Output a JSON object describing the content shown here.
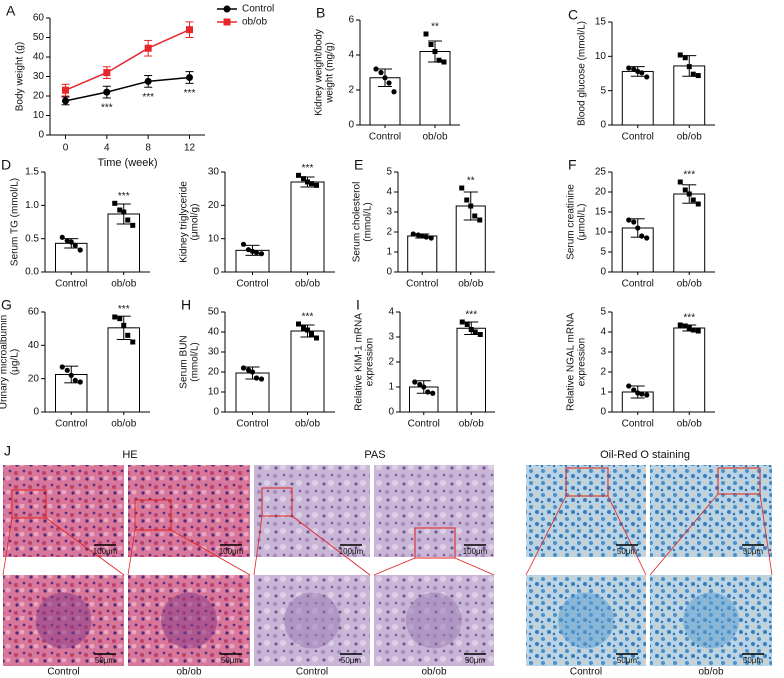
{
  "chart_data": [
    {
      "type": "line",
      "label": "A",
      "xlabel": "Time (week)",
      "ylabel": [
        "Body weight (g)"
      ],
      "x": [
        0,
        4,
        8,
        12
      ],
      "xlim": [
        -1.5,
        13.5
      ],
      "xticks": [
        0,
        4,
        8,
        12
      ],
      "ylim": [
        0,
        60
      ],
      "yticks": [
        0,
        10,
        20,
        30,
        40,
        50,
        60
      ],
      "series": [
        {
          "name": "Control",
          "color": "#000000",
          "values": [
            17.5,
            22,
            27.5,
            29.5
          ],
          "errors": [
            2,
            3,
            3,
            3
          ]
        },
        {
          "name": "ob/ob",
          "color": "#e8262a",
          "values": [
            23,
            32,
            44.5,
            54
          ],
          "errors": [
            3,
            3,
            4,
            4
          ]
        }
      ],
      "significance": [
        null,
        "***",
        "***",
        "***"
      ]
    },
    {
      "type": "bar",
      "label": "B",
      "ylabel": [
        "Kidney weight/body",
        "weight (mg/g)"
      ],
      "categories": [
        "Control",
        "ob/ob"
      ],
      "values": [
        2.7,
        4.2
      ],
      "errors": [
        0.5,
        0.6
      ],
      "points": [
        [
          3.2,
          3.0,
          2.7,
          2.4,
          1.9
        ],
        [
          5.2,
          4.6,
          4.2,
          3.7,
          3.6
        ]
      ],
      "significance": [
        null,
        "**"
      ],
      "ylim": [
        0,
        6
      ],
      "yticks": [
        0,
        2,
        4,
        6
      ]
    },
    {
      "type": "bar",
      "label": "C",
      "ylabel": [
        "Blood glucose (mmol/L)"
      ],
      "categories": [
        "Control",
        "ob/ob"
      ],
      "values": [
        7.8,
        8.6
      ],
      "errors": [
        0.7,
        1.5
      ],
      "points": [
        [
          8.3,
          8.1,
          7.8,
          7.6,
          7.0
        ],
        [
          10.2,
          9.8,
          8.5,
          7.4,
          7.2
        ]
      ],
      "significance": [
        null,
        null
      ],
      "ylim": [
        0,
        15
      ],
      "yticks": [
        0,
        5,
        10,
        15
      ]
    },
    {
      "type": "bar",
      "label": "D",
      "ylabel": [
        "Serum TG (mmol/L)"
      ],
      "categories": [
        "Control",
        "ob/ob"
      ],
      "values": [
        0.43,
        0.87
      ],
      "errors": [
        0.07,
        0.15
      ],
      "points": [
        [
          0.52,
          0.47,
          0.45,
          0.4,
          0.33
        ],
        [
          1.03,
          0.93,
          0.9,
          0.78,
          0.7
        ]
      ],
      "significance": [
        null,
        "***"
      ],
      "ylim": [
        0,
        1.5
      ],
      "yticks": [
        {
          "value": 0,
          "label": "0.0"
        },
        {
          "value": 0.5,
          "label": "0.5"
        },
        {
          "value": 1,
          "label": "1.0"
        },
        {
          "value": 1.5,
          "label": "1.5"
        }
      ]
    },
    {
      "type": "bar",
      "ylabel": [
        "Kidney triglyceride",
        "(μmol/g)"
      ],
      "categories": [
        "Control",
        "ob/ob"
      ],
      "values": [
        6.5,
        27
      ],
      "errors": [
        1.5,
        1.5
      ],
      "points": [
        [
          8.3,
          6.7,
          6.2,
          5.8,
          5.5
        ],
        [
          29,
          28,
          27,
          26.5,
          26
        ]
      ],
      "significance": [
        null,
        "***"
      ],
      "ylim": [
        0,
        30
      ],
      "yticks": [
        0,
        10,
        20,
        30
      ]
    },
    {
      "type": "bar",
      "label": "E",
      "ylabel": [
        "Serum cholesterol",
        "(mmol/L)"
      ],
      "categories": [
        "Control",
        "ob/ob"
      ],
      "values": [
        1.8,
        3.3
      ],
      "errors": [
        0.1,
        0.7
      ],
      "points": [
        [
          1.9,
          1.85,
          1.8,
          1.75,
          1.7
        ],
        [
          4.2,
          3.6,
          3.3,
          2.8,
          2.6
        ]
      ],
      "significance": [
        null,
        "**"
      ],
      "ylim": [
        0,
        5
      ],
      "yticks": [
        0,
        1,
        2,
        3,
        4,
        5
      ]
    },
    {
      "type": "bar",
      "label": "F",
      "ylabel": [
        "Serum creatinine",
        "(μmol/L)"
      ],
      "categories": [
        "Control",
        "ob/ob"
      ],
      "values": [
        11,
        19.5
      ],
      "errors": [
        2.3,
        2.3
      ],
      "points": [
        [
          13,
          12.5,
          11,
          9,
          8.5
        ],
        [
          22.5,
          20.5,
          19.5,
          18,
          17
        ]
      ],
      "significance": [
        null,
        "***"
      ],
      "ylim": [
        0,
        25
      ],
      "yticks": [
        0,
        5,
        10,
        15,
        20,
        25
      ]
    },
    {
      "type": "bar",
      "label": "G",
      "ylabel": [
        "Urinary microalbumin",
        "(μg/L)"
      ],
      "categories": [
        "Control",
        "ob/ob"
      ],
      "values": [
        22.5,
        50.5
      ],
      "errors": [
        5,
        7
      ],
      "points": [
        [
          27,
          25,
          22,
          19,
          18
        ],
        [
          57,
          56,
          52,
          46,
          42
        ]
      ],
      "significance": [
        null,
        "***"
      ],
      "ylim": [
        0,
        60
      ],
      "yticks": [
        0,
        20,
        40,
        60
      ]
    },
    {
      "type": "bar",
      "label": "H",
      "ylabel": [
        "Serum BUN",
        "(mmol/L)"
      ],
      "categories": [
        "Control",
        "ob/ob"
      ],
      "values": [
        19.5,
        40.5
      ],
      "errors": [
        3,
        3
      ],
      "points": [
        [
          22,
          21,
          20,
          17,
          16.5
        ],
        [
          44,
          42,
          41,
          39,
          37
        ]
      ],
      "significance": [
        null,
        "***"
      ],
      "ylim": [
        0,
        50
      ],
      "yticks": [
        0,
        10,
        20,
        30,
        40,
        50
      ]
    },
    {
      "type": "bar",
      "label": "I",
      "ylabel": [
        "Relative KIM-1 mRNA",
        "expression"
      ],
      "categories": [
        "Control",
        "ob/ob"
      ],
      "values": [
        1.0,
        3.35
      ],
      "errors": [
        0.25,
        0.25
      ],
      "points": [
        [
          1.2,
          1.1,
          1.0,
          0.8,
          0.75
        ],
        [
          3.6,
          3.5,
          3.3,
          3.2,
          3.1
        ]
      ],
      "significance": [
        null,
        "***"
      ],
      "ylim": [
        0,
        4
      ],
      "yticks": [
        0,
        1,
        2,
        3,
        4
      ]
    },
    {
      "type": "bar",
      "ylabel": [
        "Relative NGAL mRNA",
        "expression"
      ],
      "categories": [
        "Control",
        "ob/ob"
      ],
      "values": [
        1.0,
        4.2
      ],
      "errors": [
        0.3,
        0.15
      ],
      "points": [
        [
          1.3,
          1.1,
          0.95,
          0.9,
          0.85
        ],
        [
          4.35,
          4.3,
          4.2,
          4.1,
          4.05
        ]
      ],
      "significance": [
        null,
        "***"
      ],
      "ylim": [
        0,
        5
      ],
      "yticks": [
        0,
        1,
        2,
        3,
        4,
        5
      ]
    }
  ],
  "panel_j": {
    "label": "J",
    "headers": [
      "HE",
      "PAS",
      "Oil-Red O staining"
    ],
    "scale_labels": [
      "100μm",
      "100μm",
      "100μm",
      "100μm",
      "50μm",
      "50μm",
      "50μm",
      "50μm",
      "50μm",
      "50μm",
      "50μm",
      "50μm"
    ],
    "labels": [
      "Control",
      "ob/ob",
      "Control",
      "ob/ob",
      "Control",
      "ob/ob"
    ]
  }
}
